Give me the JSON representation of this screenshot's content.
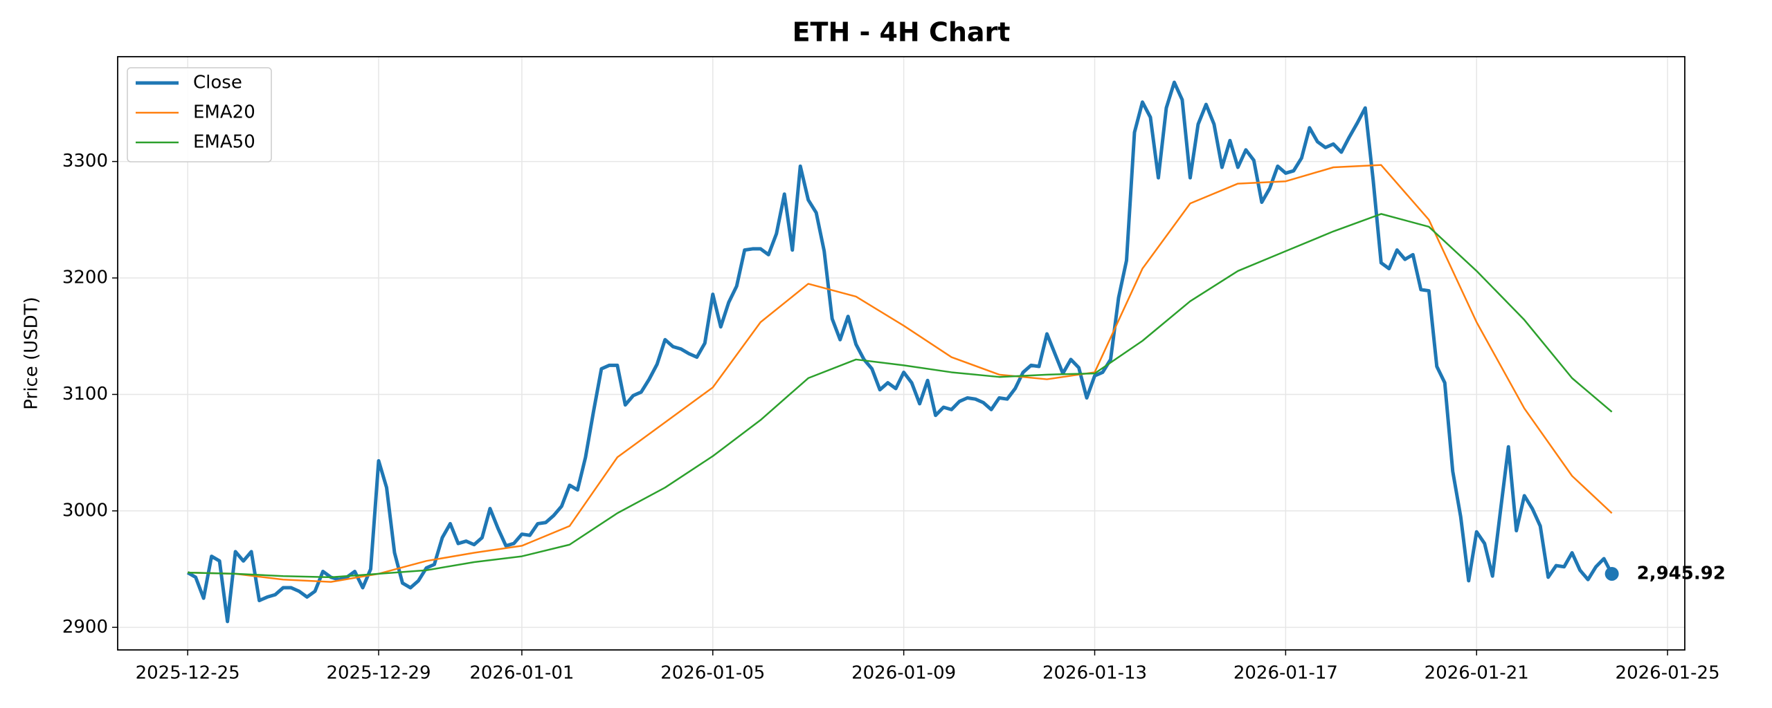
{
  "chart_data": {
    "type": "line",
    "title": "ETH - 4H Chart",
    "ylabel": "Price (USDT)",
    "xlim": [
      "2025-12-23T12:48",
      "2026-01-25T08:40"
    ],
    "xticks": [
      "2025-12-25",
      "2025-12-29",
      "2026-01-01",
      "2026-01-05",
      "2026-01-09",
      "2026-01-13",
      "2026-01-17",
      "2026-01-21",
      "2026-01-25"
    ],
    "ylim": [
      2880.6,
      3390
    ],
    "yticks": [
      2900,
      3000,
      3100,
      3200,
      3300
    ],
    "grid": true,
    "legend": "upper-left",
    "series": [
      {
        "name": "Close",
        "color": "#1f77b4",
        "x": [
          "2025-12-25T00:00",
          "2025-12-25T04:00",
          "2025-12-25T08:00",
          "2025-12-25T12:00",
          "2025-12-25T16:00",
          "2025-12-25T20:00",
          "2025-12-26T00:00",
          "2025-12-26T04:00",
          "2025-12-26T08:00",
          "2025-12-26T12:00",
          "2025-12-26T16:00",
          "2025-12-26T20:00",
          "2025-12-27T00:00",
          "2025-12-27T04:00",
          "2025-12-27T08:00",
          "2025-12-27T12:00",
          "2025-12-27T16:00",
          "2025-12-27T20:00",
          "2025-12-28T00:00",
          "2025-12-28T04:00",
          "2025-12-28T08:00",
          "2025-12-28T12:00",
          "2025-12-28T16:00",
          "2025-12-28T20:00",
          "2025-12-29T00:00",
          "2025-12-29T04:00",
          "2025-12-29T08:00",
          "2025-12-29T12:00",
          "2025-12-29T16:00",
          "2025-12-29T20:00",
          "2025-12-30T00:00",
          "2025-12-30T04:00",
          "2025-12-30T08:00",
          "2025-12-30T12:00",
          "2025-12-30T16:00",
          "2025-12-30T20:00",
          "2025-12-31T00:00",
          "2025-12-31T04:00",
          "2025-12-31T08:00",
          "2025-12-31T12:00",
          "2025-12-31T16:00",
          "2025-12-31T20:00",
          "2026-01-01T00:00",
          "2026-01-01T04:00",
          "2026-01-01T08:00",
          "2026-01-01T12:00",
          "2026-01-01T16:00",
          "2026-01-01T20:00",
          "2026-01-02T00:00",
          "2026-01-02T04:00",
          "2026-01-02T08:00",
          "2026-01-02T12:00",
          "2026-01-02T16:00",
          "2026-01-02T20:00",
          "2026-01-03T00:00",
          "2026-01-03T04:00",
          "2026-01-03T08:00",
          "2026-01-03T12:00",
          "2026-01-03T16:00",
          "2026-01-03T20:00",
          "2026-01-04T00:00",
          "2026-01-04T04:00",
          "2026-01-04T08:00",
          "2026-01-04T12:00",
          "2026-01-04T16:00",
          "2026-01-04T20:00",
          "2026-01-05T00:00",
          "2026-01-05T04:00",
          "2026-01-05T08:00",
          "2026-01-05T12:00",
          "2026-01-05T16:00",
          "2026-01-05T20:00",
          "2026-01-06T00:00",
          "2026-01-06T04:00",
          "2026-01-06T08:00",
          "2026-01-06T12:00",
          "2026-01-06T16:00",
          "2026-01-06T20:00",
          "2026-01-07T00:00",
          "2026-01-07T04:00",
          "2026-01-07T08:00",
          "2026-01-07T12:00",
          "2026-01-07T16:00",
          "2026-01-07T20:00",
          "2026-01-08T00:00",
          "2026-01-08T04:00",
          "2026-01-08T08:00",
          "2026-01-08T12:00",
          "2026-01-08T16:00",
          "2026-01-08T20:00",
          "2026-01-09T00:00",
          "2026-01-09T04:00",
          "2026-01-09T08:00",
          "2026-01-09T12:00",
          "2026-01-09T16:00",
          "2026-01-09T20:00",
          "2026-01-10T00:00",
          "2026-01-10T04:00",
          "2026-01-10T08:00",
          "2026-01-10T12:00",
          "2026-01-10T16:00",
          "2026-01-10T20:00",
          "2026-01-11T00:00",
          "2026-01-11T04:00",
          "2026-01-11T08:00",
          "2026-01-11T12:00",
          "2026-01-11T16:00",
          "2026-01-11T20:00",
          "2026-01-12T00:00",
          "2026-01-12T04:00",
          "2026-01-12T08:00",
          "2026-01-12T12:00",
          "2026-01-12T16:00",
          "2026-01-12T20:00",
          "2026-01-13T00:00",
          "2026-01-13T04:00",
          "2026-01-13T08:00",
          "2026-01-13T12:00",
          "2026-01-13T16:00",
          "2026-01-13T20:00",
          "2026-01-14T00:00",
          "2026-01-14T04:00",
          "2026-01-14T08:00",
          "2026-01-14T12:00",
          "2026-01-14T16:00",
          "2026-01-14T20:00",
          "2026-01-15T00:00",
          "2026-01-15T04:00",
          "2026-01-15T08:00",
          "2026-01-15T12:00",
          "2026-01-15T16:00",
          "2026-01-15T20:00",
          "2026-01-16T00:00",
          "2026-01-16T04:00",
          "2026-01-16T08:00",
          "2026-01-16T12:00",
          "2026-01-16T16:00",
          "2026-01-16T20:00",
          "2026-01-17T00:00",
          "2026-01-17T04:00",
          "2026-01-17T08:00",
          "2026-01-17T12:00",
          "2026-01-17T16:00",
          "2026-01-17T20:00",
          "2026-01-18T00:00",
          "2026-01-18T04:00",
          "2026-01-18T08:00",
          "2026-01-18T12:00",
          "2026-01-18T16:00",
          "2026-01-18T20:00",
          "2026-01-19T00:00",
          "2026-01-19T04:00",
          "2026-01-19T08:00",
          "2026-01-19T12:00",
          "2026-01-19T16:00",
          "2026-01-19T20:00",
          "2026-01-20T00:00",
          "2026-01-20T04:00",
          "2026-01-20T08:00",
          "2026-01-20T12:00",
          "2026-01-20T16:00",
          "2026-01-20T20:00",
          "2026-01-21T00:00",
          "2026-01-21T04:00",
          "2026-01-21T08:00",
          "2026-01-21T12:00",
          "2026-01-21T16:00",
          "2026-01-21T20:00",
          "2026-01-22T00:00",
          "2026-01-22T04:00",
          "2026-01-22T08:00",
          "2026-01-22T12:00",
          "2026-01-22T16:00",
          "2026-01-22T20:00",
          "2026-01-23T00:00",
          "2026-01-23T04:00",
          "2026-01-23T08:00",
          "2026-01-23T12:00",
          "2026-01-23T16:00",
          "2026-01-23T20:00"
        ],
        "values": [
          2947,
          2943,
          2925,
          2961,
          2957,
          2905,
          2965,
          2957,
          2965,
          2923,
          2926,
          2928,
          2934,
          2934,
          2931,
          2926,
          2931,
          2948,
          2943,
          2941,
          2943,
          2948,
          2934,
          2950,
          3043,
          3020,
          2964,
          2938,
          2934,
          2940,
          2951,
          2954,
          2977,
          2989,
          2972,
          2974,
          2971,
          2977,
          3002,
          2985,
          2970,
          2972,
          2980,
          2979,
          2989,
          2990,
          2996,
          3004,
          3022,
          3018,
          3046,
          3085,
          3122,
          3125,
          3125,
          3091,
          3099,
          3102,
          3113,
          3126,
          3147,
          3141,
          3139,
          3135,
          3132,
          3144,
          3186,
          3158,
          3179,
          3193,
          3224,
          3225,
          3225,
          3220,
          3238,
          3272,
          3224,
          3296,
          3267,
          3256,
          3223,
          3165,
          3147,
          3167,
          3143,
          3130,
          3122,
          3104,
          3110,
          3105,
          3119,
          3110,
          3092,
          3112,
          3082,
          3089,
          3087,
          3094,
          3097,
          3096,
          3093,
          3087,
          3097,
          3096,
          3105,
          3119,
          3125,
          3124,
          3152,
          3135,
          3118,
          3130,
          3123,
          3097,
          3116,
          3119,
          3130,
          3183,
          3215,
          3325,
          3351,
          3338,
          3286,
          3346,
          3368,
          3353,
          3286,
          3332,
          3349,
          3332,
          3295,
          3318,
          3295,
          3310,
          3301,
          3265,
          3277,
          3296,
          3290,
          3292,
          3303,
          3329,
          3317,
          3312,
          3315,
          3308,
          3321,
          3333,
          3346,
          3284,
          3213,
          3208,
          3224,
          3216,
          3220,
          3190,
          3189,
          3124,
          3110,
          3034,
          2995,
          2940,
          2982,
          2972,
          2944,
          3000,
          3055,
          2983,
          3013,
          3002,
          2987,
          2943,
          2953,
          2952,
          2964,
          2949,
          2941,
          2952,
          2959,
          2945.92
        ]
      },
      {
        "name": "EMA20",
        "color": "#ff7f0e",
        "x": [
          "2025-12-25T00:00",
          "2025-12-26T00:00",
          "2025-12-27T00:00",
          "2025-12-28T00:00",
          "2025-12-29T00:00",
          "2025-12-30T00:00",
          "2025-12-31T00:00",
          "2026-01-01T00:00",
          "2026-01-02T00:00",
          "2026-01-03T00:00",
          "2026-01-04T00:00",
          "2026-01-05T00:00",
          "2026-01-06T00:00",
          "2026-01-07T00:00",
          "2026-01-08T00:00",
          "2026-01-09T00:00",
          "2026-01-10T00:00",
          "2026-01-11T00:00",
          "2026-01-12T00:00",
          "2026-01-13T00:00",
          "2026-01-14T00:00",
          "2026-01-15T00:00",
          "2026-01-16T00:00",
          "2026-01-17T00:00",
          "2026-01-18T00:00",
          "2026-01-19T00:00",
          "2026-01-20T00:00",
          "2026-01-21T00:00",
          "2026-01-22T00:00",
          "2026-01-23T00:00",
          "2026-01-23T20:00"
        ],
        "values": [
          2947,
          2946,
          2941,
          2939,
          2946,
          2957,
          2964,
          2970,
          2987,
          3046,
          3076,
          3106,
          3162,
          3195,
          3184,
          3159,
          3132,
          3117,
          3113,
          3119,
          3208,
          3264,
          3281,
          3283,
          3295,
          3297,
          3250,
          3162,
          3088,
          3030,
          2998
        ]
      },
      {
        "name": "EMA50",
        "color": "#2ca02c",
        "x": [
          "2025-12-25T00:00",
          "2025-12-26T00:00",
          "2025-12-27T00:00",
          "2025-12-28T00:00",
          "2025-12-29T00:00",
          "2025-12-30T00:00",
          "2025-12-31T00:00",
          "2026-01-01T00:00",
          "2026-01-02T00:00",
          "2026-01-03T00:00",
          "2026-01-04T00:00",
          "2026-01-05T00:00",
          "2026-01-06T00:00",
          "2026-01-07T00:00",
          "2026-01-08T00:00",
          "2026-01-09T00:00",
          "2026-01-10T00:00",
          "2026-01-11T00:00",
          "2026-01-12T00:00",
          "2026-01-13T00:00",
          "2026-01-14T00:00",
          "2026-01-15T00:00",
          "2026-01-16T00:00",
          "2026-01-17T00:00",
          "2026-01-18T00:00",
          "2026-01-19T00:00",
          "2026-01-20T00:00",
          "2026-01-21T00:00",
          "2026-01-22T00:00",
          "2026-01-23T00:00",
          "2026-01-23T20:00"
        ],
        "values": [
          2947,
          2946,
          2944,
          2943,
          2946,
          2949,
          2956,
          2961,
          2971,
          2998,
          3020,
          3047,
          3078,
          3114,
          3130,
          3125,
          3119,
          3115,
          3117,
          3118,
          3146,
          3180,
          3206,
          3223,
          3240,
          3255,
          3244,
          3206,
          3164,
          3114,
          3085
        ]
      }
    ],
    "annotations": [
      {
        "text": "2,945.92",
        "x": "2026-01-23T20:00",
        "y": 2945.92
      }
    ]
  }
}
